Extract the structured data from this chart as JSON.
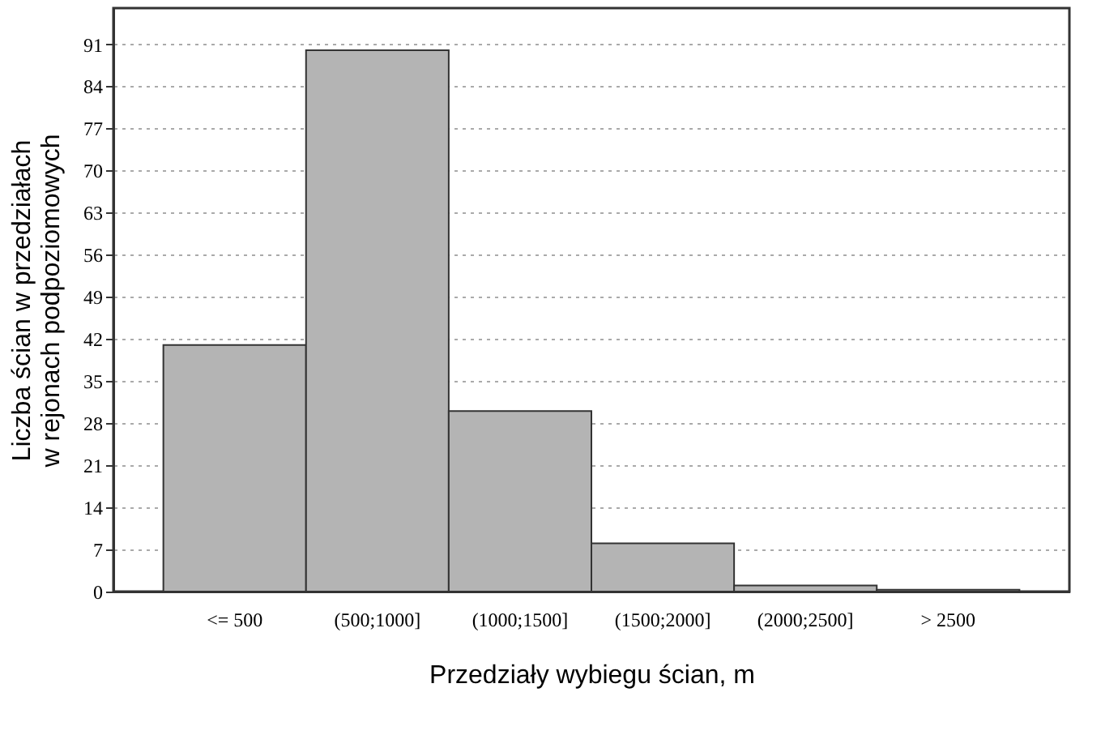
{
  "chart_data": {
    "type": "bar",
    "categories": [
      "<= 500",
      "(500;1000]",
      "(1000;1500]",
      "(1500;2000]",
      "(2000;2500]",
      "> 2500"
    ],
    "values": [
      41,
      90,
      30,
      8,
      1,
      0.3
    ],
    "color": "#b4b4b4",
    "xlabel": "Przedziały wybiegu ścian, m",
    "ylabel": "Liczba ścian w przedziałach\nw rejonach podpoziomowych",
    "ylim": [
      0,
      97
    ],
    "yticks": [
      0,
      7,
      14,
      21,
      28,
      35,
      42,
      49,
      56,
      63,
      70,
      77,
      84,
      91
    ],
    "grid": "y"
  }
}
